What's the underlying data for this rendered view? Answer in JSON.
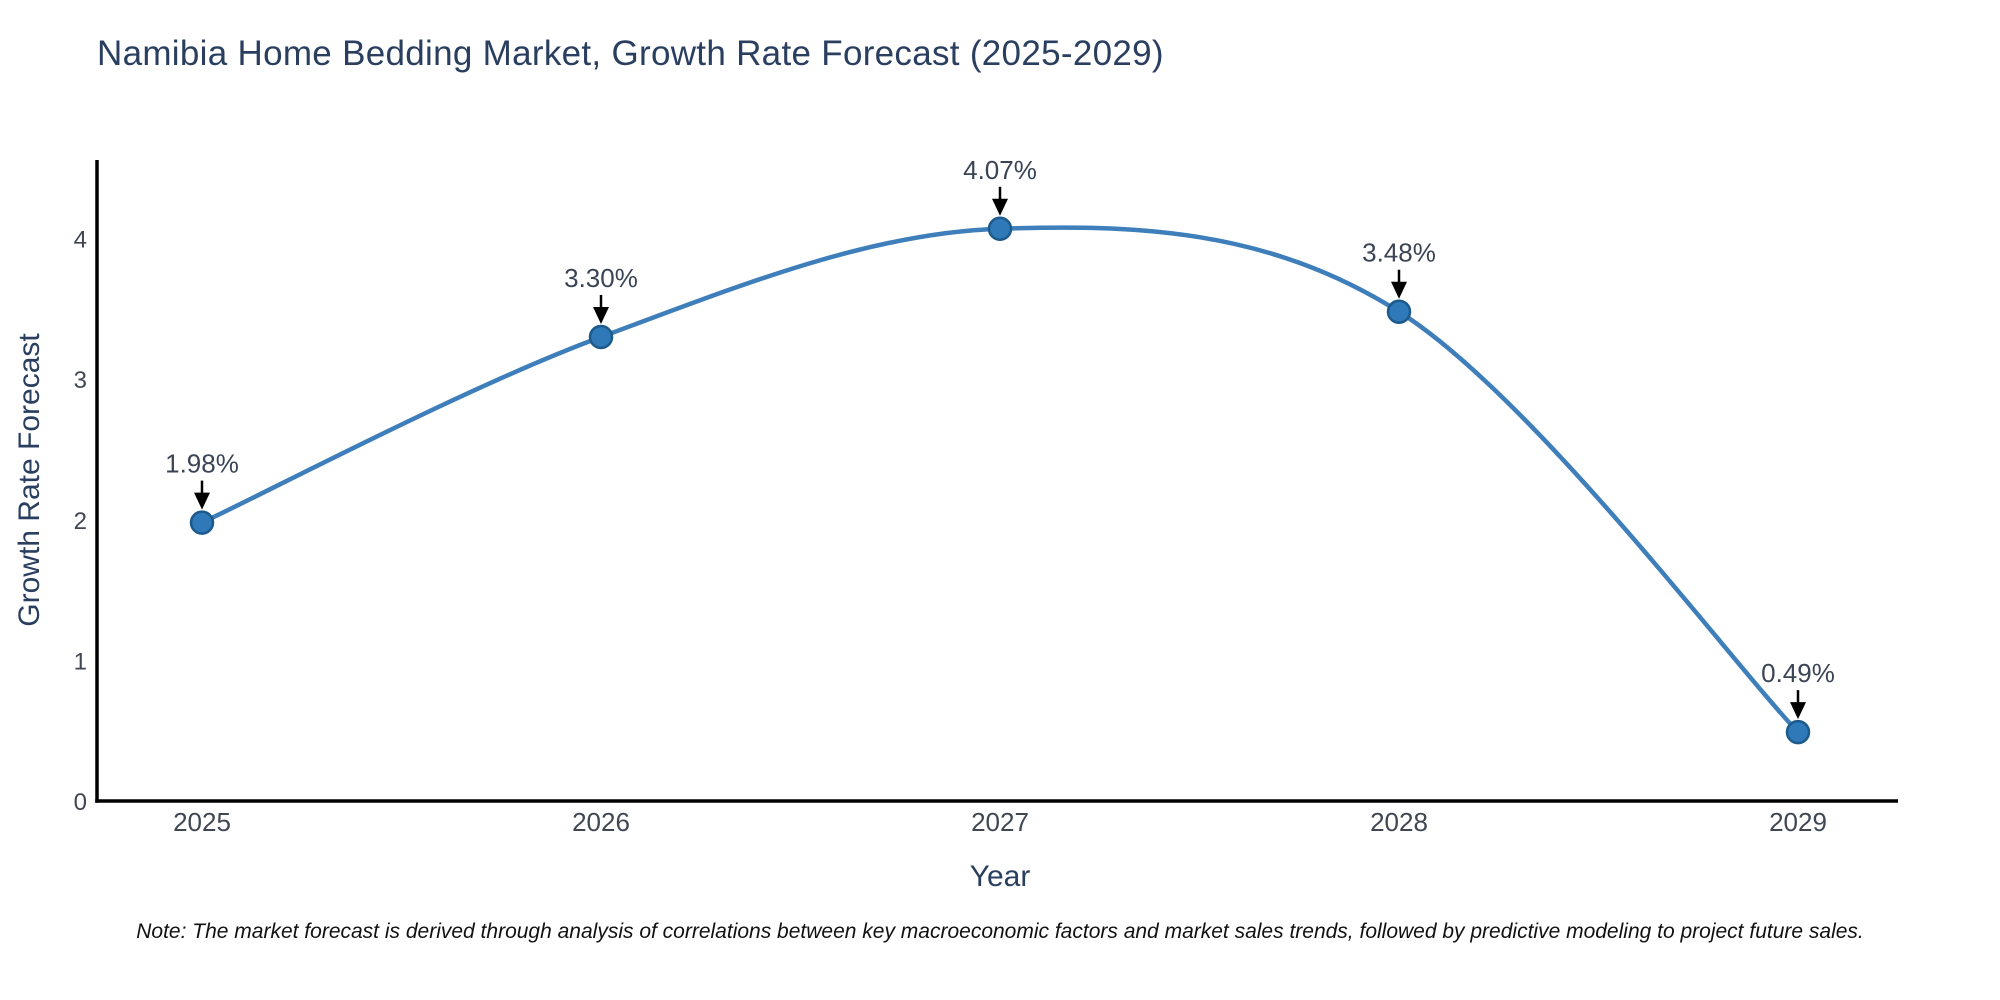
{
  "chart_data": {
    "type": "line",
    "title": "Namibia Home Bedding Market, Growth Rate Forecast (2025-2029)",
    "xlabel": "Year",
    "ylabel": "Growth Rate Forecast",
    "categories": [
      "2025",
      "2026",
      "2027",
      "2028",
      "2029"
    ],
    "series": [
      {
        "name": "Growth Rate Forecast",
        "values": [
          1.98,
          3.3,
          4.07,
          3.48,
          0.49
        ],
        "point_labels": [
          "1.98%",
          "3.30%",
          "4.07%",
          "3.48%",
          "0.49%"
        ]
      }
    ],
    "yticks": [
      "0",
      "1",
      "2",
      "3",
      "4"
    ],
    "ylim": [
      0,
      4.55
    ],
    "line_shape": "spline",
    "grid": false,
    "legend": "none",
    "annotations_style": "black-arrow-down",
    "colors": {
      "line": "#3d7ebb",
      "marker_fill": "#2f79b9",
      "marker_edge": "#1d5a8c",
      "axis_line": "#000000",
      "tick_label": "#3f4753",
      "annotation_text": "#3b4454",
      "arrow": "#000000",
      "title": "#2a3f5f",
      "background": "#ffffff"
    },
    "note": "Note: The market forecast is derived through analysis of correlations between key macroeconomic factors and market sales trends, followed by predictive modeling to project future sales."
  }
}
